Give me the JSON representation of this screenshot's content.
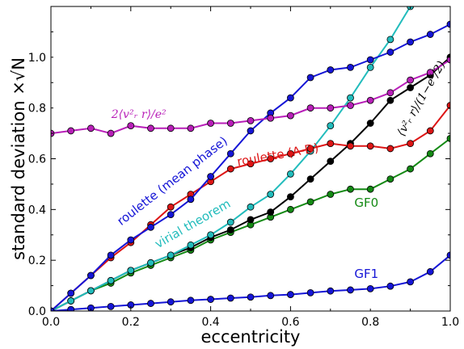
{
  "chart_data": {
    "type": "line",
    "xlabel": "eccentricity",
    "ylabel": "standard deviation",
    "ylabel_suffix": "×√N",
    "xlim": [
      0.0,
      1.0
    ],
    "ylim": [
      0.0,
      1.2
    ],
    "x_ticks": [
      "0.0",
      "0.2",
      "0.4",
      "0.6",
      "0.8",
      "1.0"
    ],
    "y_ticks": [
      "0.0",
      "0.2",
      "0.4",
      "0.6",
      "0.8",
      "1.0"
    ],
    "grid": false,
    "series": [
      {
        "name": "roulette (mean phase)",
        "color": "#1515d6",
        "x": [
          0.0,
          0.05,
          0.1,
          0.15,
          0.2,
          0.25,
          0.3,
          0.35,
          0.4,
          0.45,
          0.5,
          0.55,
          0.6,
          0.65,
          0.7,
          0.75,
          0.8,
          0.85,
          0.9,
          0.95,
          1.0
        ],
        "values": [
          0.0,
          0.07,
          0.14,
          0.22,
          0.28,
          0.33,
          0.38,
          0.44,
          0.53,
          0.62,
          0.71,
          0.78,
          0.84,
          0.92,
          0.95,
          0.96,
          0.99,
          1.02,
          1.06,
          1.09,
          1.13
        ]
      },
      {
        "name": "roulette (A-D)",
        "color": "#dd1515",
        "x": [
          0.0,
          0.05,
          0.1,
          0.15,
          0.2,
          0.25,
          0.3,
          0.35,
          0.4,
          0.45,
          0.5,
          0.55,
          0.6,
          0.65,
          0.7,
          0.75,
          0.8,
          0.85,
          0.9,
          0.95,
          1.0
        ],
        "values": [
          0.0,
          0.07,
          0.14,
          0.21,
          0.27,
          0.34,
          0.41,
          0.46,
          0.51,
          0.56,
          0.58,
          0.6,
          0.62,
          0.64,
          0.66,
          0.65,
          0.65,
          0.64,
          0.66,
          0.71,
          0.81
        ]
      },
      {
        "name": "virial theorem",
        "color": "#22bcbc",
        "x": [
          0.0,
          0.05,
          0.1,
          0.15,
          0.2,
          0.25,
          0.3,
          0.35,
          0.4,
          0.45,
          0.5,
          0.55,
          0.6,
          0.65,
          0.7,
          0.75,
          0.8,
          0.85,
          0.9
        ],
        "values": [
          0.0,
          0.04,
          0.08,
          0.12,
          0.16,
          0.19,
          0.22,
          0.26,
          0.3,
          0.35,
          0.41,
          0.46,
          0.54,
          0.63,
          0.73,
          0.84,
          0.96,
          1.07,
          1.2
        ]
      },
      {
        "name": "",
        "color": "#000000",
        "x": [
          0.0,
          0.05,
          0.1,
          0.15,
          0.2,
          0.25,
          0.3,
          0.35,
          0.4,
          0.45,
          0.5,
          0.55,
          0.6,
          0.65,
          0.7,
          0.75,
          0.8,
          0.85,
          0.9,
          0.95,
          1.0
        ],
        "values": [
          0.0,
          0.04,
          0.08,
          0.12,
          0.16,
          0.19,
          0.22,
          0.25,
          0.29,
          0.32,
          0.36,
          0.39,
          0.45,
          0.52,
          0.59,
          0.66,
          0.74,
          0.83,
          0.88,
          0.93,
          1.0
        ]
      },
      {
        "name": "GF0",
        "color": "#148a14",
        "x": [
          0.0,
          0.05,
          0.1,
          0.15,
          0.2,
          0.25,
          0.3,
          0.35,
          0.4,
          0.45,
          0.5,
          0.55,
          0.6,
          0.65,
          0.7,
          0.75,
          0.8,
          0.85,
          0.9,
          0.95,
          1.0
        ],
        "values": [
          0.0,
          0.04,
          0.08,
          0.11,
          0.15,
          0.18,
          0.21,
          0.24,
          0.28,
          0.31,
          0.34,
          0.37,
          0.4,
          0.43,
          0.46,
          0.48,
          0.48,
          0.52,
          0.56,
          0.62,
          0.68
        ]
      },
      {
        "name": "GF1",
        "color": "#1515d6",
        "x": [
          0.0,
          0.05,
          0.1,
          0.15,
          0.2,
          0.25,
          0.3,
          0.35,
          0.4,
          0.45,
          0.5,
          0.55,
          0.6,
          0.65,
          0.7,
          0.75,
          0.8,
          0.85,
          0.9,
          0.95,
          1.0
        ],
        "values": [
          0.0,
          0.006,
          0.012,
          0.018,
          0.024,
          0.03,
          0.036,
          0.042,
          0.046,
          0.051,
          0.055,
          0.061,
          0.065,
          0.072,
          0.079,
          0.083,
          0.088,
          0.098,
          0.115,
          0.155,
          0.22
        ]
      },
      {
        "name": "",
        "color": "#b81fb8",
        "x": [
          0.0,
          0.05,
          0.1,
          0.15,
          0.2,
          0.25,
          0.3,
          0.35,
          0.4,
          0.45,
          0.5,
          0.55,
          0.6,
          0.65,
          0.7,
          0.75,
          0.8,
          0.85,
          0.9,
          0.95,
          1.0
        ],
        "values": [
          0.7,
          0.71,
          0.72,
          0.7,
          0.73,
          0.72,
          0.72,
          0.72,
          0.74,
          0.74,
          0.75,
          0.76,
          0.77,
          0.8,
          0.8,
          0.81,
          0.83,
          0.86,
          0.91,
          0.94,
          0.99
        ]
      }
    ],
    "annotations": [
      {
        "text": "roulette (mean phase)",
        "color": "#1515d6",
        "x": 0.31,
        "y": 0.5,
        "angle": -38,
        "kind": "text"
      },
      {
        "text": "roulette (A-D)",
        "color": "#dd1515",
        "x": 0.57,
        "y": 0.6,
        "angle": -10,
        "kind": "text"
      },
      {
        "text": "virial theorem",
        "color": "#22bcbc",
        "x": 0.36,
        "y": 0.33,
        "angle": -30,
        "kind": "text"
      },
      {
        "text": "GF0",
        "color": "#148a14",
        "x": 0.79,
        "y": 0.41,
        "angle": 0,
        "kind": "text"
      },
      {
        "text": "GF1",
        "color": "#1515d6",
        "x": 0.79,
        "y": 0.13,
        "angle": 0,
        "kind": "text"
      },
      {
        "text": "2⟨v²ᵣ r⟩/e²",
        "color": "#b81fb8",
        "x": 0.22,
        "y": 0.76,
        "angle": 0,
        "kind": "math"
      },
      {
        "text": "⟨v²ᵣ r⟩/(1−e²/2)",
        "color": "#000000",
        "x": 0.935,
        "y": 0.83,
        "angle": -60,
        "kind": "math"
      }
    ]
  }
}
